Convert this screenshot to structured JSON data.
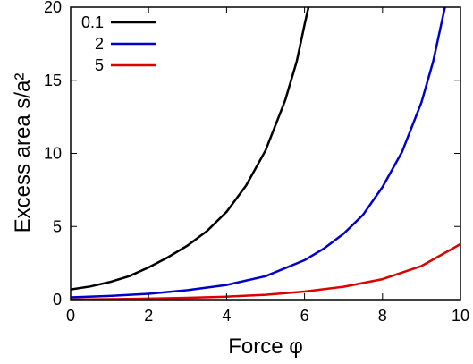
{
  "chart_data": {
    "type": "line",
    "xlabel": "Force φ",
    "ylabel": "Excess area s/a²",
    "xlim": [
      0,
      10
    ],
    "ylim": [
      0,
      20
    ],
    "xticks": [
      "0",
      "2",
      "4",
      "6",
      "8",
      "10"
    ],
    "yticks": [
      "0",
      "5",
      "10",
      "15",
      "20"
    ],
    "grid": false,
    "legend_position": "top-left",
    "series": [
      {
        "name": "0.1",
        "color": "#000000",
        "x": [
          0,
          0.5,
          1,
          1.5,
          2,
          2.5,
          3,
          3.5,
          4,
          4.5,
          5,
          5.5,
          5.8,
          6,
          6.1
        ],
        "y": [
          0.7,
          0.9,
          1.2,
          1.6,
          2.2,
          2.9,
          3.7,
          4.7,
          6.0,
          7.8,
          10.2,
          13.6,
          16.3,
          18.8,
          20.0
        ]
      },
      {
        "name": "2",
        "color": "#0000cc",
        "x": [
          0,
          1,
          2,
          3,
          4,
          5,
          6,
          6.5,
          7,
          7.5,
          8,
          8.5,
          9,
          9.3,
          9.6
        ],
        "y": [
          0.15,
          0.25,
          0.4,
          0.65,
          1.0,
          1.6,
          2.7,
          3.5,
          4.5,
          5.8,
          7.7,
          10.1,
          13.5,
          16.3,
          20.0
        ]
      },
      {
        "name": "5",
        "color": "#dd0000",
        "x": [
          0,
          1,
          2,
          3,
          4,
          5,
          6,
          7,
          8,
          9,
          10
        ],
        "y": [
          0.0,
          0.03,
          0.07,
          0.12,
          0.2,
          0.33,
          0.55,
          0.88,
          1.4,
          2.3,
          3.8
        ]
      }
    ]
  }
}
